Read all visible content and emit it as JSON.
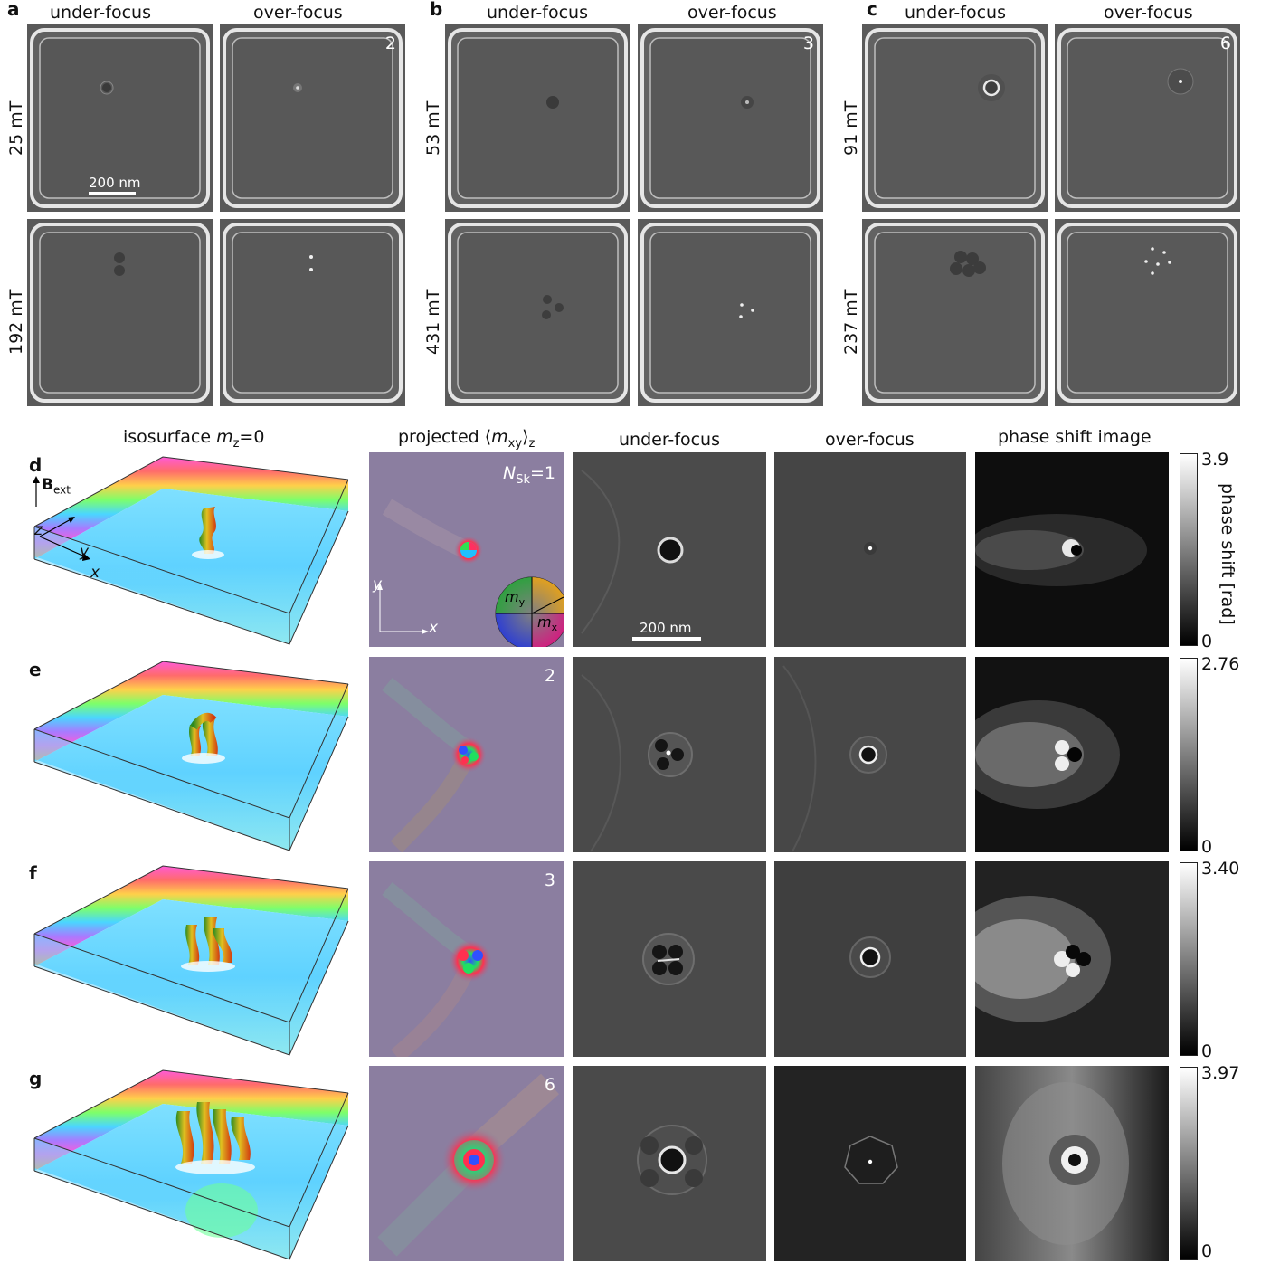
{
  "top": {
    "header_under": "under-focus",
    "header_over": "over-focus",
    "panels": [
      {
        "letter": "a",
        "fields": [
          "25 mT",
          "192 mT"
        ],
        "n": "2",
        "scale": "200 nm"
      },
      {
        "letter": "b",
        "fields": [
          "53 mT",
          "431 mT"
        ],
        "n": "3"
      },
      {
        "letter": "c",
        "fields": [
          "91 mT",
          "237 mT"
        ],
        "n": "6"
      }
    ]
  },
  "bottom": {
    "col_iso_prefix": "isosurface ",
    "col_iso_var": "m",
    "col_iso_sub": "z",
    "col_iso_suffix": "=0",
    "col_proj_prefix": "projected ⟨",
    "col_proj_var": "m",
    "col_proj_sub": "xy",
    "col_proj_suffix": "⟩",
    "col_proj_sub2": "z",
    "col_under": "under-focus",
    "col_over": "over-focus",
    "col_phase": "phase shift image",
    "rows": [
      {
        "letter": "d",
        "n_prefix": "N",
        "n_sub": "Sk",
        "n_suffix": "=1",
        "cmax": "3.9",
        "cmin": "0"
      },
      {
        "letter": "e",
        "n": "2",
        "cmax": "2.76",
        "cmin": "0"
      },
      {
        "letter": "f",
        "n": "3",
        "cmax": "3.40",
        "cmin": "0"
      },
      {
        "letter": "g",
        "n": "6",
        "cmax": "3.97",
        "cmin": "0"
      }
    ],
    "axes": {
      "B": "B",
      "B_sub": "ext",
      "z": "z",
      "y": "y",
      "x": "x"
    },
    "wheel": {
      "my": "m",
      "my_sub": "y",
      "mx": "m",
      "mx_sub": "x"
    },
    "scale": "200 nm",
    "colorbar_label": "phase shift [rad]"
  }
}
